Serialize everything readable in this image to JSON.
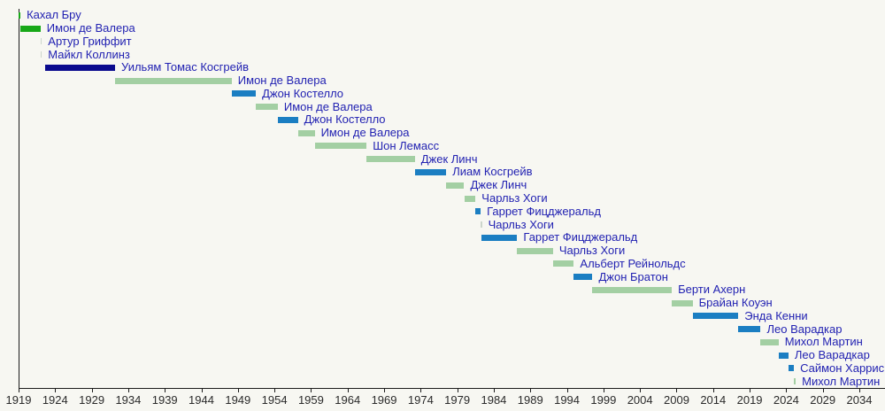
{
  "chart_data": {
    "type": "bar",
    "subtype": "horizontal-timeline",
    "title": "",
    "xlabel": "",
    "ylabel": "",
    "x_axis": {
      "min": 1919,
      "max": 2034,
      "tick_interval": 5,
      "ticks": [
        1919,
        1924,
        1929,
        1934,
        1939,
        1944,
        1949,
        1954,
        1959,
        1964,
        1969,
        1974,
        1979,
        1984,
        1989,
        1994,
        1999,
        2004,
        2009,
        2014,
        2019,
        2024,
        2029,
        2034
      ]
    },
    "grid": "off",
    "legend": "none",
    "palette": {
      "green": "#18a818",
      "lightgreen": "#a3cfa3",
      "navy": "#0a0a8e",
      "blue": "#1b7ec2",
      "pale": "#ccd6cc"
    },
    "text_colors": {
      "term_label": "#2222b2",
      "tick_label": "#2b2b2b",
      "axis": "#1c1c1c",
      "background": "#f7f7f2"
    },
    "terms": [
      {
        "label": "Кахал Бру",
        "start": 1919.0,
        "end": 1919.25,
        "color": "green"
      },
      {
        "label": "Имон де Валера",
        "start": 1919.3,
        "end": 1922.0,
        "color": "green"
      },
      {
        "label": "Артур Гриффит",
        "start": 1922.0,
        "end": 1922.1,
        "color": "pale"
      },
      {
        "label": "Майкл Коллинз",
        "start": 1922.0,
        "end": 1922.1,
        "color": "pale"
      },
      {
        "label": "Уильям Томас Косгрейв",
        "start": 1922.65,
        "end": 1932.2,
        "color": "navy"
      },
      {
        "label": "Имон де Валера",
        "start": 1932.2,
        "end": 1948.15,
        "color": "lightgreen"
      },
      {
        "label": "Джон Костелло",
        "start": 1948.15,
        "end": 1951.45,
        "color": "blue"
      },
      {
        "label": "Имон де Валера",
        "start": 1951.45,
        "end": 1954.45,
        "color": "lightgreen"
      },
      {
        "label": "Джон Костелло",
        "start": 1954.45,
        "end": 1957.2,
        "color": "blue"
      },
      {
        "label": "Имон де Валера",
        "start": 1957.2,
        "end": 1959.5,
        "color": "lightgreen"
      },
      {
        "label": "Шон Лемасс",
        "start": 1959.5,
        "end": 1966.6,
        "color": "lightgreen"
      },
      {
        "label": "Джек Линч",
        "start": 1966.6,
        "end": 1973.2,
        "color": "lightgreen"
      },
      {
        "label": "Лиам Косгрейв",
        "start": 1973.2,
        "end": 1977.5,
        "color": "blue"
      },
      {
        "label": "Джек Линч",
        "start": 1977.5,
        "end": 1979.95,
        "color": "lightgreen"
      },
      {
        "label": "Чарльз Хоги",
        "start": 1979.95,
        "end": 1981.5,
        "color": "lightgreen"
      },
      {
        "label": "Гаррет Фицджеральд",
        "start": 1981.5,
        "end": 1982.2,
        "color": "blue"
      },
      {
        "label": "Чарльз Хоги",
        "start": 1982.2,
        "end": 1982.35,
        "color": "pale"
      },
      {
        "label": "Гаррет Фицджеральд",
        "start": 1982.35,
        "end": 1987.2,
        "color": "blue"
      },
      {
        "label": "Чарльз Хоги",
        "start": 1987.2,
        "end": 1992.1,
        "color": "lightgreen"
      },
      {
        "label": "Альберт Рейнольдс",
        "start": 1992.1,
        "end": 1994.95,
        "color": "lightgreen"
      },
      {
        "label": "Джон Братон",
        "start": 1994.95,
        "end": 1997.5,
        "color": "blue"
      },
      {
        "label": "Берти  Ахерн",
        "start": 1997.5,
        "end": 2008.35,
        "color": "lightgreen"
      },
      {
        "label": "Брайан Коуэн",
        "start": 2008.35,
        "end": 2011.2,
        "color": "lightgreen"
      },
      {
        "label": "Энда Кенни",
        "start": 2011.2,
        "end": 2017.45,
        "color": "blue"
      },
      {
        "label": "Лео Варадкар",
        "start": 2017.45,
        "end": 2020.5,
        "color": "blue"
      },
      {
        "label": "Михол Мартин",
        "start": 2020.5,
        "end": 2022.95,
        "color": "lightgreen"
      },
      {
        "label": "Лео Варадкар",
        "start": 2022.95,
        "end": 2024.3,
        "color": "blue"
      },
      {
        "label": "Саймон Харрис",
        "start": 2024.3,
        "end": 2025.05,
        "color": "blue"
      },
      {
        "label": "Михол Мартин",
        "start": 2025.05,
        "end": 2025.3,
        "color": "lightgreen"
      }
    ]
  }
}
